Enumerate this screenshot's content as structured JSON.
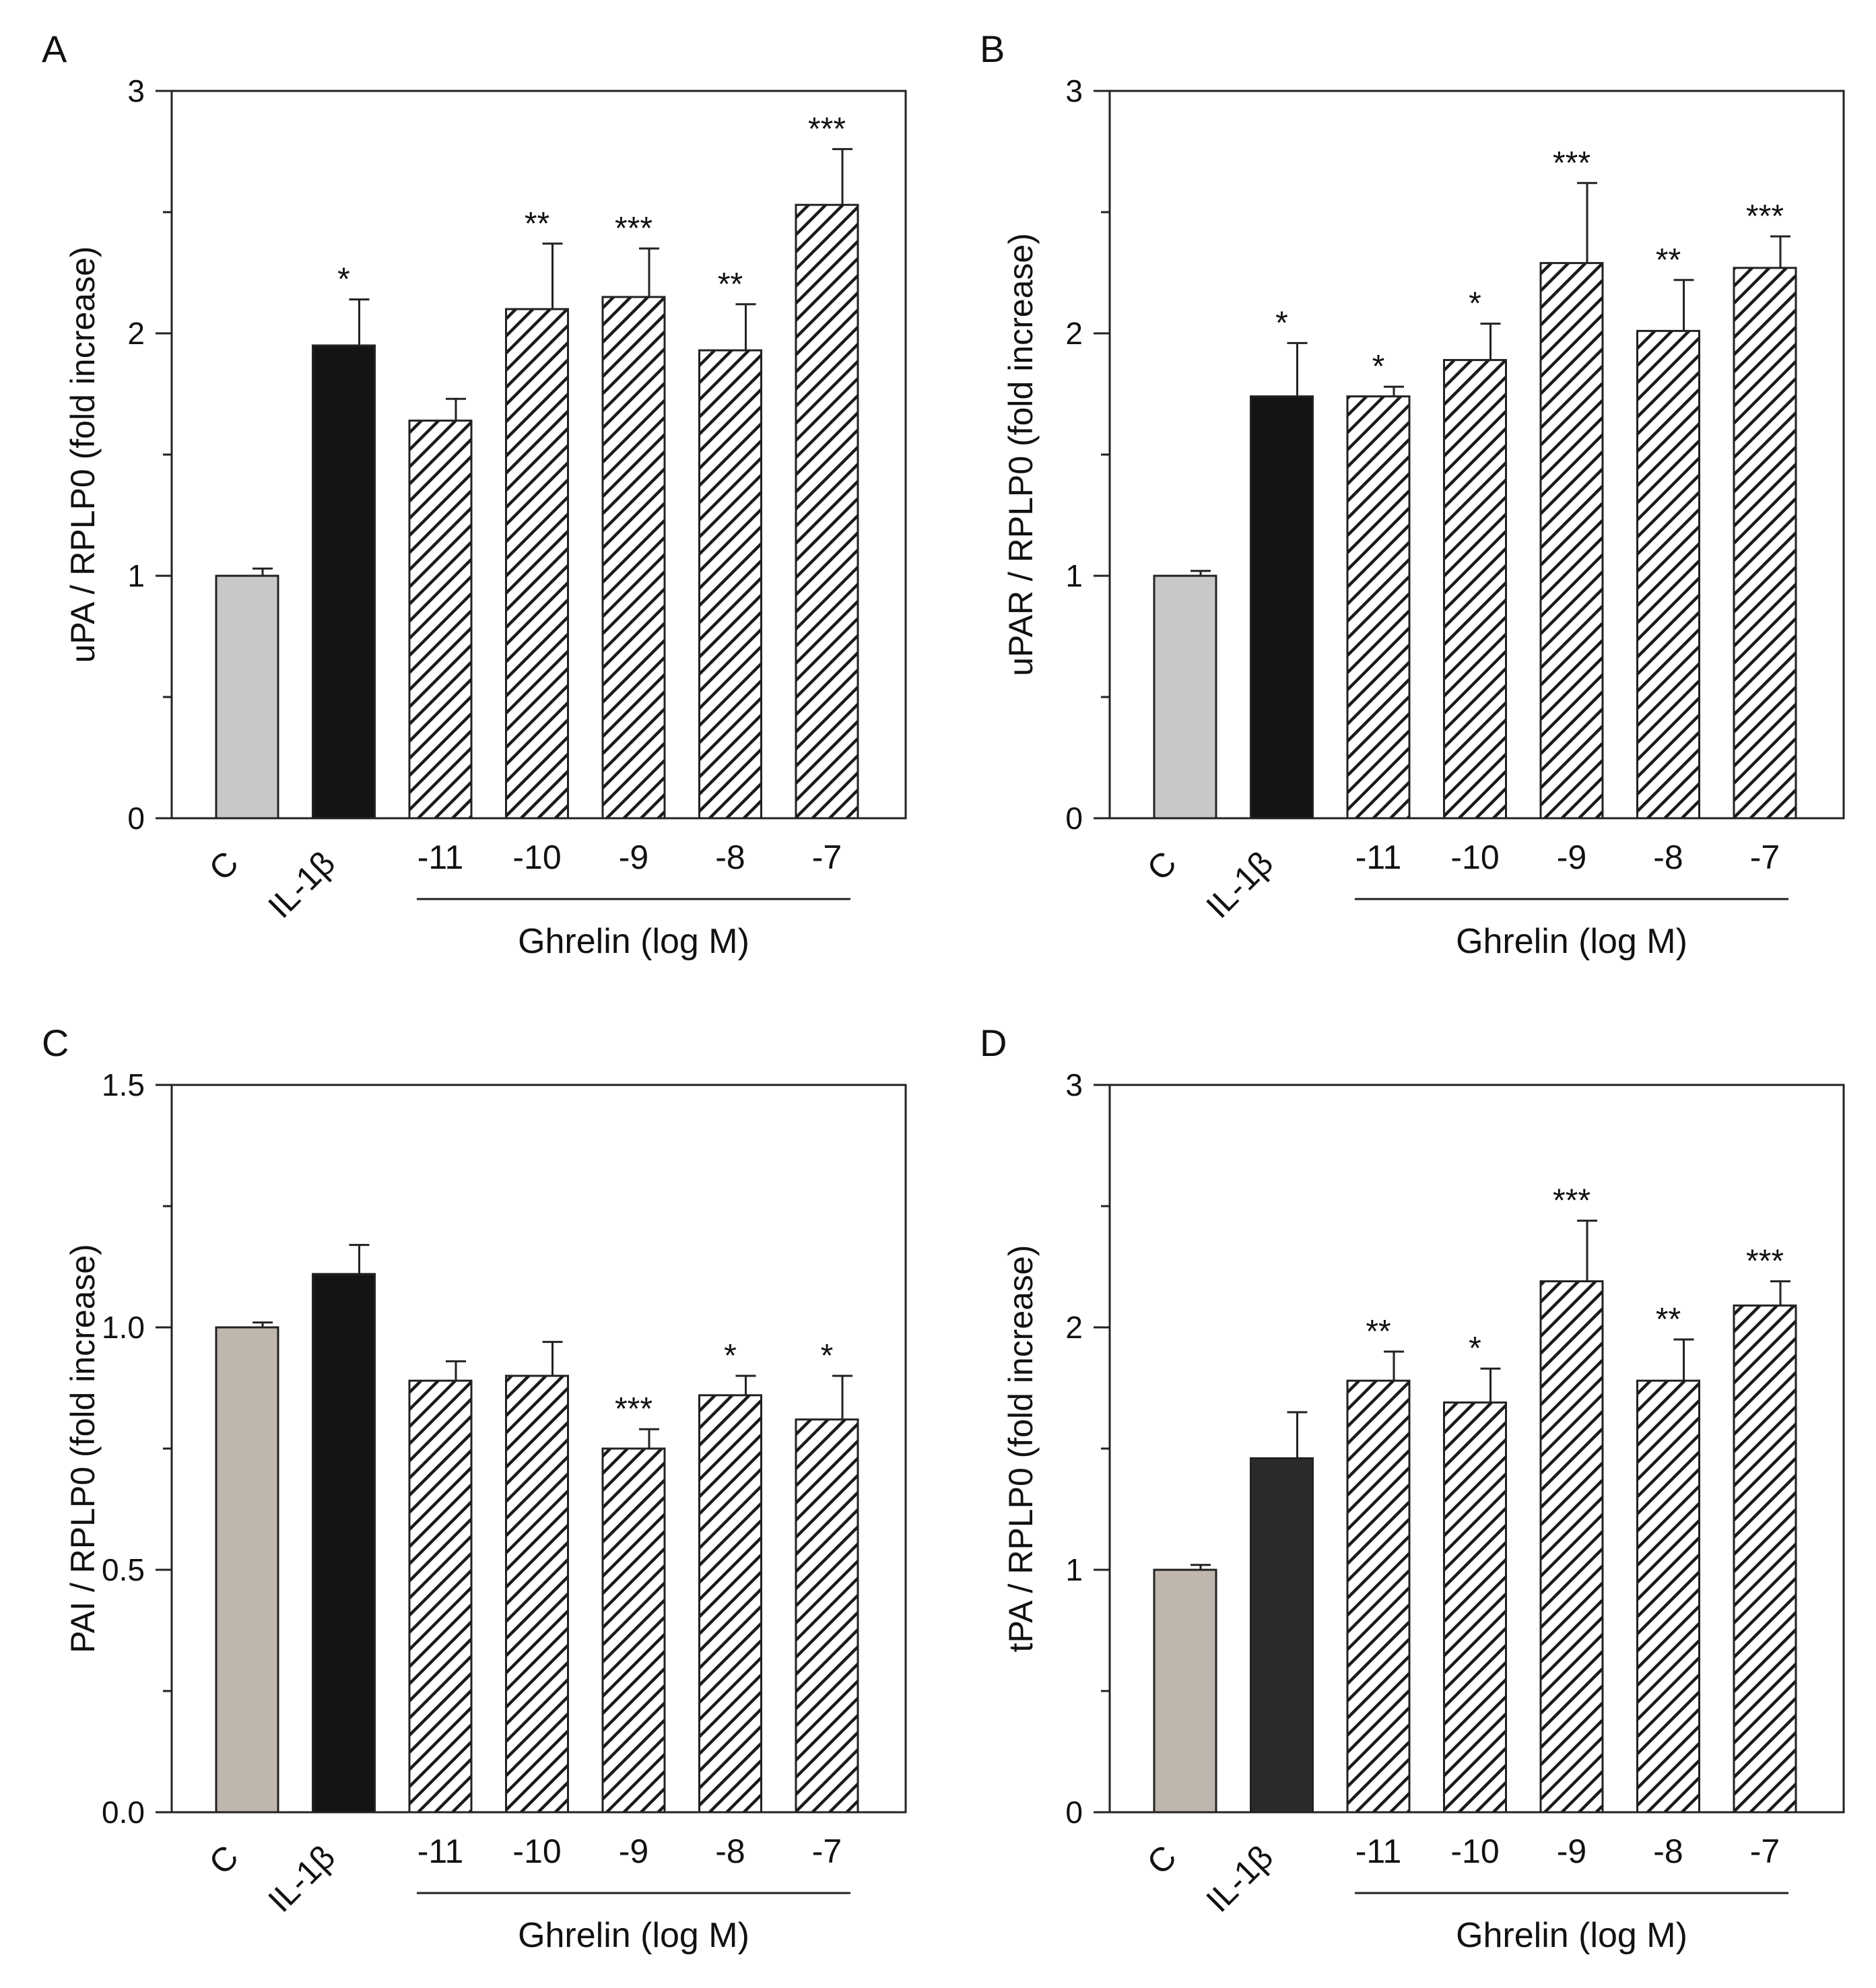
{
  "colors": {
    "control_A_B": "#c8c8c8",
    "control_C_D": "#bfb6ae",
    "il1b": "#141414",
    "il1b_D": "#2b2b2b",
    "hatch": "#1a1a1a",
    "axis": "#222222"
  },
  "chart_data": [
    {
      "panel": "A",
      "type": "bar",
      "ylabel": "uPA / RPLP0 (fold increase)",
      "group_label": "Ghrelin (log M)",
      "categories": [
        "C",
        "IL-1β",
        "-11",
        "-10",
        "-9",
        "-8",
        "-7"
      ],
      "values": [
        1.0,
        1.95,
        1.64,
        2.1,
        2.15,
        1.93,
        2.53
      ],
      "errors": [
        0.03,
        0.19,
        0.09,
        0.27,
        0.2,
        0.19,
        0.23
      ],
      "significance": [
        "",
        "*",
        "",
        "**",
        "***",
        "**",
        "***"
      ],
      "fills": [
        "control",
        "solid",
        "hatch",
        "hatch",
        "hatch",
        "hatch",
        "hatch"
      ],
      "ylim": [
        0,
        3
      ],
      "yticks": [
        0,
        1,
        2,
        3
      ],
      "ytick_labels": [
        "0",
        "1",
        "2",
        "3"
      ]
    },
    {
      "panel": "B",
      "type": "bar",
      "ylabel": "uPAR / RPLP0 (fold increase)",
      "group_label": "Ghrelin (log M)",
      "categories": [
        "C",
        "IL-1β",
        "-11",
        "-10",
        "-9",
        "-8",
        "-7"
      ],
      "values": [
        1.0,
        1.74,
        1.74,
        1.89,
        2.29,
        2.01,
        2.27
      ],
      "errors": [
        0.02,
        0.22,
        0.04,
        0.15,
        0.33,
        0.21,
        0.13
      ],
      "significance": [
        "",
        "*",
        "*",
        "*",
        "***",
        "**",
        "***"
      ],
      "fills": [
        "control",
        "solid",
        "hatch",
        "hatch",
        "hatch",
        "hatch",
        "hatch"
      ],
      "ylim": [
        0,
        3
      ],
      "yticks": [
        0,
        1,
        2,
        3
      ],
      "ytick_labels": [
        "0",
        "1",
        "2",
        "3"
      ]
    },
    {
      "panel": "C",
      "type": "bar",
      "ylabel": "PAI / RPLP0 (fold increase)",
      "group_label": "Ghrelin (log M)",
      "categories": [
        "C",
        "IL-1β",
        "-11",
        "-10",
        "-9",
        "-8",
        "-7"
      ],
      "values": [
        1.0,
        1.11,
        0.89,
        0.9,
        0.75,
        0.86,
        0.81
      ],
      "errors": [
        0.01,
        0.06,
        0.04,
        0.07,
        0.04,
        0.04,
        0.09
      ],
      "significance": [
        "",
        "",
        "",
        "",
        "***",
        "*",
        "*"
      ],
      "fills": [
        "control",
        "solid",
        "hatch",
        "hatch",
        "hatch",
        "hatch",
        "hatch"
      ],
      "ylim": [
        0,
        1.5
      ],
      "yticks": [
        0,
        0.5,
        1.0,
        1.5
      ],
      "ytick_labels": [
        "0.0",
        "0.5",
        "1.0",
        "1.5"
      ]
    },
    {
      "panel": "D",
      "type": "bar",
      "ylabel": "tPA / RPLP0 (fold increase)",
      "group_label": "Ghrelin (log M)",
      "categories": [
        "C",
        "IL-1β",
        "-11",
        "-10",
        "-9",
        "-8",
        "-7"
      ],
      "values": [
        1.0,
        1.46,
        1.78,
        1.69,
        2.19,
        1.78,
        2.09
      ],
      "errors": [
        0.02,
        0.19,
        0.12,
        0.14,
        0.25,
        0.17,
        0.1
      ],
      "significance": [
        "",
        "",
        "**",
        "*",
        "***",
        "**",
        "***"
      ],
      "fills": [
        "control",
        "solid",
        "hatch",
        "hatch",
        "hatch",
        "hatch",
        "hatch"
      ],
      "ylim": [
        0,
        3
      ],
      "yticks": [
        0,
        1,
        2,
        3
      ],
      "ytick_labels": [
        "0",
        "1",
        "2",
        "3"
      ]
    }
  ]
}
